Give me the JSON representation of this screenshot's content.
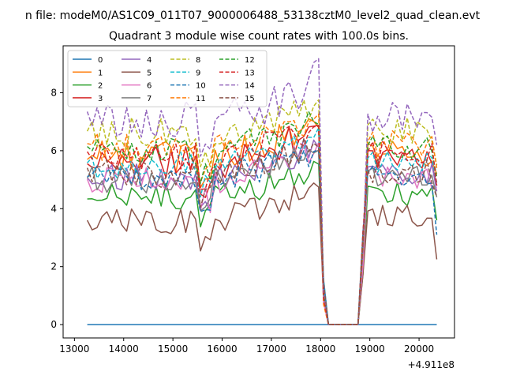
{
  "chart_data": {
    "type": "line",
    "suptitle": "n file: modeM0/AS1C09_011T07_9000006488_53138cztM0_level2_quad_clean.evt",
    "title": "Quadrant 3 module wise count rates with 100.0s bins.",
    "xlabel": "",
    "ylabel": "",
    "x_offset_label": "+4.911e8",
    "xlim": [
      12770,
      20720
    ],
    "ylim": [
      -0.46,
      9.62
    ],
    "x_ticks": [
      13000,
      14000,
      15000,
      16000,
      17000,
      18000,
      19000,
      20000
    ],
    "x_tick_labels": [
      "13000",
      "14000",
      "15000",
      "16000",
      "17000",
      "18000",
      "19000",
      "20000"
    ],
    "y_ticks": [
      0,
      2,
      4,
      6,
      8
    ],
    "y_tick_labels": [
      "0",
      "2",
      "4",
      "6",
      "8"
    ],
    "legend_position": "top-left",
    "legend_columns": 4,
    "gap": {
      "start": 18100,
      "end": 18850
    },
    "x_start": 13260,
    "x_end": 20360,
    "step": 100,
    "series": [
      {
        "name": "0",
        "color": "#1f77b4",
        "dash": false,
        "base": 0.0,
        "amp": 0.0,
        "end": 0.0
      },
      {
        "name": "1",
        "color": "#ff7f0e",
        "dash": false,
        "base": 5.8,
        "amp": 0.35,
        "end": 5.2
      },
      {
        "name": "2",
        "color": "#2ca02c",
        "dash": false,
        "base": 4.4,
        "amp": 0.3,
        "end": 3.6
      },
      {
        "name": "3",
        "color": "#d62728",
        "dash": false,
        "base": 5.6,
        "amp": 0.35,
        "end": 4.8
      },
      {
        "name": "4",
        "color": "#9467bd",
        "dash": false,
        "base": 5.1,
        "amp": 0.3,
        "end": 4.6
      },
      {
        "name": "5",
        "color": "#8c564b",
        "dash": false,
        "base": 3.6,
        "amp": 0.3,
        "end": 2.25
      },
      {
        "name": "6",
        "color": "#e377c2",
        "dash": false,
        "base": 5.0,
        "amp": 0.3,
        "end": 4.7
      },
      {
        "name": "7",
        "color": "#7f7f7f",
        "dash": false,
        "base": 5.0,
        "amp": 0.3,
        "end": 4.4
      },
      {
        "name": "8",
        "color": "#bcbd22",
        "dash": true,
        "base": 6.6,
        "amp": 0.35,
        "end": 5.5
      },
      {
        "name": "9",
        "color": "#17becf",
        "dash": true,
        "base": 5.5,
        "amp": 0.3,
        "end": 4.9
      },
      {
        "name": "10",
        "color": "#1f77b4",
        "dash": true,
        "base": 5.0,
        "amp": 0.3,
        "end": 3.1
      },
      {
        "name": "11",
        "color": "#ff7f0e",
        "dash": true,
        "base": 6.1,
        "amp": 0.35,
        "end": 5.4
      },
      {
        "name": "12",
        "color": "#2ca02c",
        "dash": true,
        "base": 6.0,
        "amp": 0.3,
        "end": 5.1
      },
      {
        "name": "13",
        "color": "#d62728",
        "dash": true,
        "base": 5.8,
        "amp": 0.3,
        "end": 4.8
      },
      {
        "name": "14",
        "color": "#9467bd",
        "dash": true,
        "base": 7.1,
        "amp": 0.4,
        "end": 6.2
      },
      {
        "name": "15",
        "color": "#8c564b",
        "dash": true,
        "base": 5.2,
        "amp": 0.3,
        "end": 4.4
      }
    ]
  }
}
